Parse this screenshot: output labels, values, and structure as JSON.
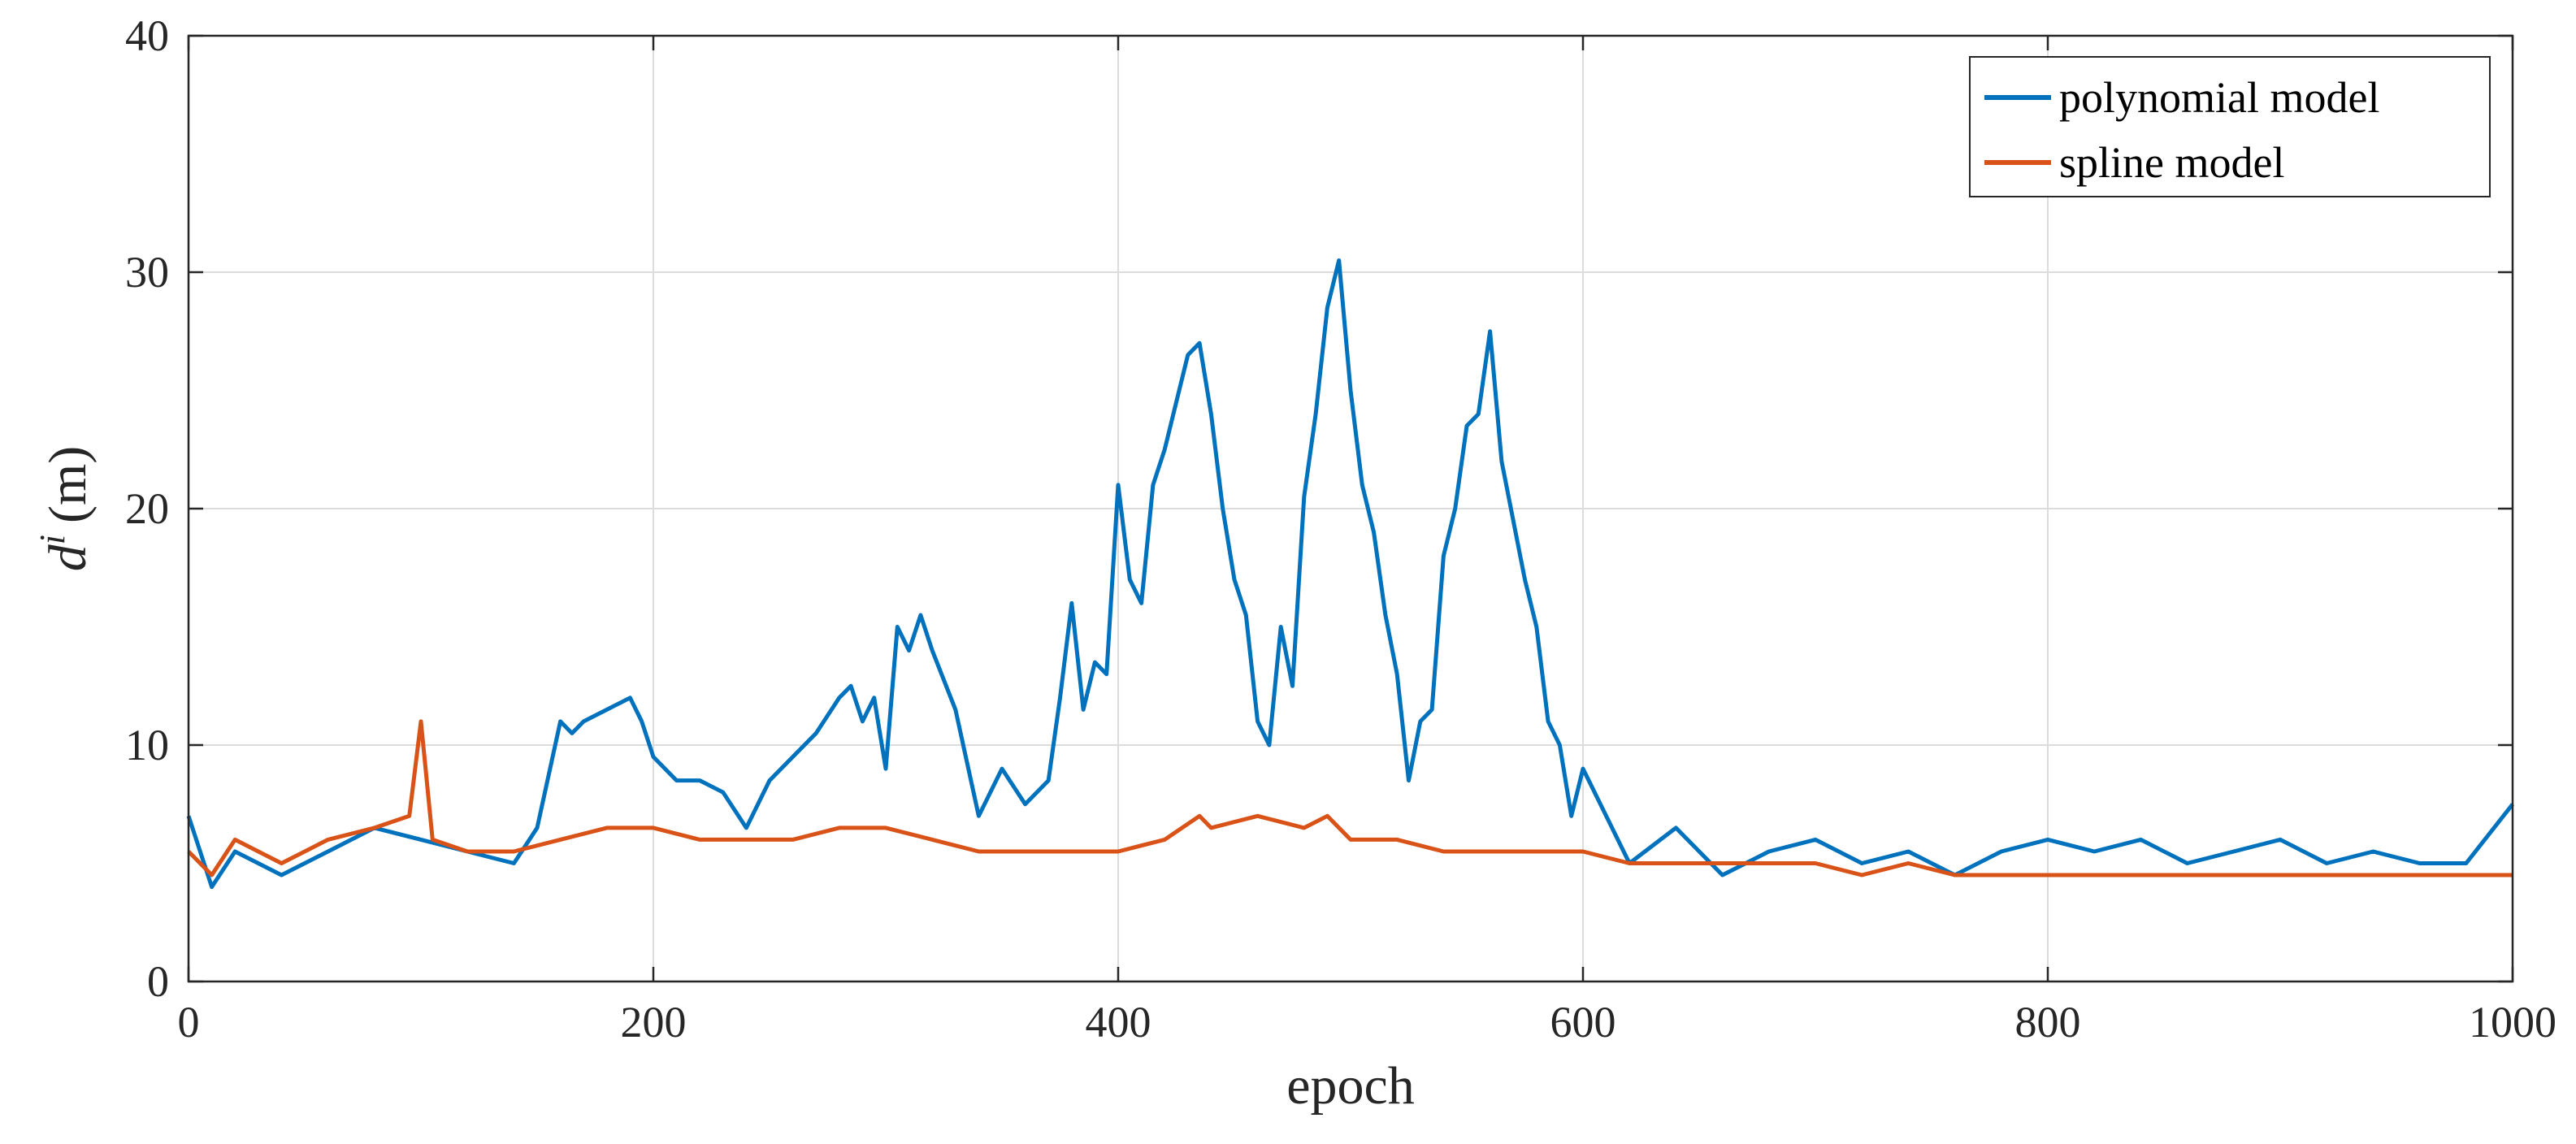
{
  "chart_data": {
    "type": "line",
    "xlabel": "epoch",
    "ylabel_base": "d",
    "ylabel_sup": "i",
    "ylabel_unit": "(m)",
    "xlim": [
      0,
      1000
    ],
    "ylim": [
      0,
      40
    ],
    "xticks": [
      0,
      200,
      400,
      600,
      800,
      1000
    ],
    "yticks": [
      0,
      10,
      20,
      30,
      40
    ],
    "xtick_labels": [
      "0",
      "200",
      "400",
      "600",
      "800",
      "1000"
    ],
    "ytick_labels": [
      "0",
      "10",
      "20",
      "30",
      "40"
    ],
    "grid": true,
    "legend_position": "top-right",
    "series": [
      {
        "name": "polynomial model",
        "color": "#0072BD",
        "x": [
          0,
          10,
          20,
          40,
          60,
          80,
          100,
          120,
          140,
          150,
          160,
          165,
          170,
          180,
          190,
          195,
          200,
          210,
          220,
          230,
          240,
          250,
          260,
          270,
          280,
          285,
          290,
          295,
          300,
          305,
          310,
          315,
          320,
          330,
          340,
          350,
          360,
          370,
          375,
          380,
          385,
          390,
          395,
          400,
          405,
          410,
          415,
          420,
          425,
          430,
          435,
          440,
          445,
          450,
          455,
          460,
          465,
          470,
          475,
          480,
          485,
          490,
          495,
          500,
          505,
          510,
          515,
          520,
          525,
          530,
          535,
          540,
          545,
          550,
          555,
          560,
          565,
          570,
          575,
          580,
          585,
          590,
          595,
          600,
          620,
          640,
          660,
          680,
          700,
          720,
          740,
          760,
          780,
          800,
          820,
          840,
          860,
          880,
          900,
          920,
          940,
          960,
          980,
          1000
        ],
        "y": [
          7.0,
          4.0,
          5.5,
          4.5,
          5.5,
          6.5,
          6.0,
          5.5,
          5.0,
          6.5,
          11.0,
          10.5,
          11.0,
          11.5,
          12.0,
          11.0,
          9.5,
          8.5,
          8.5,
          8.0,
          6.5,
          8.5,
          9.5,
          10.5,
          12.0,
          12.5,
          11.0,
          12.0,
          9.0,
          15.0,
          14.0,
          15.5,
          14.0,
          11.5,
          7.0,
          9.0,
          7.5,
          8.5,
          12.0,
          16.0,
          11.5,
          13.5,
          13.0,
          21.0,
          17.0,
          16.0,
          21.0,
          22.5,
          24.5,
          26.5,
          27.0,
          24.0,
          20.0,
          17.0,
          15.5,
          11.0,
          10.0,
          15.0,
          12.5,
          20.5,
          24.0,
          28.5,
          30.5,
          25.0,
          21.0,
          19.0,
          15.5,
          13.0,
          8.5,
          11.0,
          11.5,
          18.0,
          20.0,
          23.5,
          24.0,
          27.5,
          22.0,
          19.5,
          17.0,
          15.0,
          11.0,
          10.0,
          7.0,
          9.0,
          5.0,
          6.5,
          4.5,
          5.5,
          6.0,
          5.0,
          5.5,
          4.5,
          5.5,
          6.0,
          5.5,
          6.0,
          5.0,
          5.5,
          6.0,
          5.0,
          5.5,
          5.0,
          5.0,
          7.5
        ]
      },
      {
        "name": "spline model",
        "color": "#D95319",
        "x": [
          0,
          10,
          20,
          40,
          60,
          80,
          95,
          100,
          105,
          120,
          140,
          160,
          180,
          200,
          220,
          240,
          260,
          280,
          300,
          320,
          340,
          360,
          380,
          400,
          420,
          435,
          440,
          460,
          480,
          490,
          500,
          520,
          540,
          560,
          580,
          600,
          620,
          640,
          660,
          680,
          700,
          720,
          740,
          760,
          780,
          800,
          820,
          840,
          860,
          880,
          900,
          920,
          940,
          960,
          980,
          1000
        ],
        "y": [
          5.5,
          4.5,
          6.0,
          5.0,
          6.0,
          6.5,
          7.0,
          11.0,
          6.0,
          5.5,
          5.5,
          6.0,
          6.5,
          6.5,
          6.0,
          6.0,
          6.0,
          6.5,
          6.5,
          6.0,
          5.5,
          5.5,
          5.5,
          5.5,
          6.0,
          7.0,
          6.5,
          7.0,
          6.5,
          7.0,
          6.0,
          6.0,
          5.5,
          5.5,
          5.5,
          5.5,
          5.0,
          5.0,
          5.0,
          5.0,
          5.0,
          4.5,
          5.0,
          4.5,
          4.5,
          4.5,
          4.5,
          4.5,
          4.5,
          4.5,
          4.5,
          4.5,
          4.5,
          4.5,
          4.5,
          4.5
        ]
      }
    ]
  }
}
